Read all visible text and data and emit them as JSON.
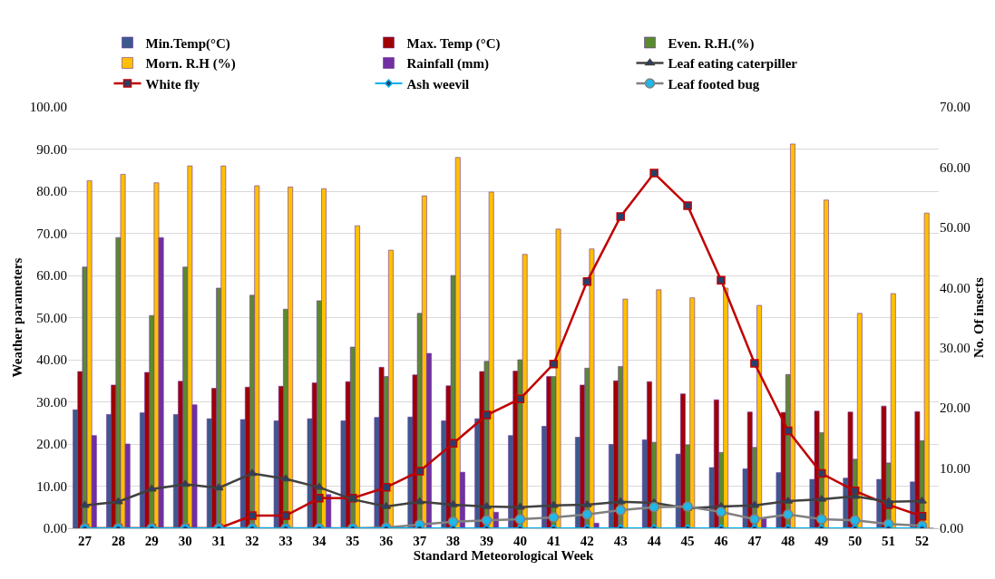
{
  "chart_data": {
    "type": "bar",
    "xlabel": "Standard Meteorological Week",
    "ylabel": "Weather parameters",
    "y2label": "No. Of insects",
    "categories": [
      "27",
      "28",
      "29",
      "30",
      "31",
      "32",
      "33",
      "34",
      "35",
      "36",
      "37",
      "38",
      "39",
      "40",
      "41",
      "42",
      "43",
      "44",
      "45",
      "46",
      "47",
      "48",
      "49",
      "50",
      "51",
      "52"
    ],
    "series": [
      {
        "name": "Min.Temp(°C)",
        "color": "#3b5a8c",
        "values": [
          28.1,
          27,
          27.4,
          27,
          26,
          25.8,
          25.5,
          26,
          25.5,
          26.3,
          26.4,
          25.5,
          26,
          22,
          24.2,
          21.6,
          19.9,
          21,
          17.6,
          14.4,
          14.1,
          13.2,
          11.6,
          11.9,
          11.6,
          11
        ]
      },
      {
        "name": "Max. Temp (°C)",
        "color": "#a00000",
        "values": [
          37.2,
          34,
          37,
          34.9,
          33.2,
          33.5,
          33.7,
          34.5,
          34.8,
          38.2,
          36.4,
          33.8,
          37.2,
          37.3,
          36,
          34,
          35,
          34.8,
          31.9,
          30.5,
          27.6,
          27.5,
          27.8,
          27.6,
          29,
          27.7
        ]
      },
      {
        "name": "Even. R.H.(%)",
        "color": "#5a8a2e",
        "values": [
          62,
          69,
          50.5,
          62,
          57,
          55.3,
          52,
          54,
          43,
          36,
          51,
          60,
          39.6,
          40,
          36,
          38,
          38.4,
          20.4,
          19.8,
          18,
          19.2,
          36.5,
          22.7,
          16.4,
          15.5,
          20.8
        ]
      },
      {
        "name": "Morn. R.H (%)",
        "color": "#ffc000",
        "values": [
          82.5,
          84,
          82,
          86,
          86,
          81.3,
          81,
          80.6,
          71.8,
          66,
          78.9,
          88,
          79.8,
          65,
          71,
          66.3,
          54.4,
          56.6,
          54.7,
          57,
          52.9,
          91.2,
          77.9,
          51,
          55.7,
          74.8
        ]
      },
      {
        "name": "Rainfall (mm)",
        "color": "#7030a0",
        "values": [
          22,
          20,
          69,
          29.3,
          0,
          0,
          0,
          8,
          0,
          0,
          41.5,
          13.3,
          3.8,
          0,
          0,
          1.2,
          0,
          0,
          0,
          0,
          2.3,
          0,
          0,
          0,
          0,
          0
        ]
      },
      {
        "name": "Leaf eating caterpiller",
        "type": "line",
        "axis": "y2",
        "marker": "triangle",
        "color": "#404040",
        "values": [
          3.8,
          4.4,
          6.5,
          7.3,
          6.7,
          9.1,
          8.2,
          6.8,
          4.8,
          3.6,
          4.4,
          3.9,
          3.6,
          3.5,
          3.8,
          3.9,
          4.4,
          4.2,
          3.3,
          3.6,
          3.8,
          4.5,
          4.8,
          5.3,
          4.4,
          4.5
        ]
      },
      {
        "name": "White fly",
        "type": "line",
        "axis": "y2",
        "marker": "square",
        "color": "#c00000",
        "values": [
          0,
          0,
          0,
          0,
          0,
          2.1,
          2.1,
          5,
          5,
          6.8,
          9.5,
          14.1,
          18.8,
          21.5,
          27.3,
          41,
          51.8,
          59,
          53.6,
          41.2,
          27.4,
          16.2,
          9.1,
          6.2,
          3.9,
          2
        ]
      },
      {
        "name": "Ash weevil",
        "type": "line",
        "axis": "y2",
        "marker": "diamond",
        "color": "#00b0f0",
        "values": [
          0,
          0,
          0,
          0,
          0,
          0,
          0,
          0,
          0,
          0,
          0,
          0,
          0,
          0,
          0,
          0,
          0,
          0,
          0,
          0,
          0,
          0,
          0,
          0,
          0,
          0
        ]
      },
      {
        "name": "Leaf footed bug",
        "type": "line",
        "axis": "y2",
        "marker": "circle",
        "color": "#808080",
        "values": [
          0,
          0,
          0,
          0,
          0,
          0,
          0,
          0,
          0,
          0.1,
          0.6,
          1.1,
          1.3,
          1.5,
          1.8,
          2.3,
          3,
          3.5,
          3.6,
          2.7,
          1.5,
          2.3,
          1.5,
          1.3,
          0.7,
          0.4
        ]
      }
    ],
    "ylim": [
      0,
      100
    ],
    "yticks": [
      {
        "value": 0,
        "label": "0.00"
      },
      {
        "value": 10,
        "label": "10.00"
      },
      {
        "value": 20,
        "label": "20.00"
      },
      {
        "value": 30,
        "label": "30.00"
      },
      {
        "value": 40,
        "label": "40.00"
      },
      {
        "value": 50,
        "label": "50.00"
      },
      {
        "value": 60,
        "label": "60.00"
      },
      {
        "value": 70,
        "label": "70.00"
      },
      {
        "value": 80,
        "label": "80.00"
      },
      {
        "value": 90,
        "label": "90.00"
      },
      {
        "value": 100,
        "label": "100.00"
      }
    ],
    "y2lim": [
      0,
      70
    ],
    "y2ticks": [
      {
        "value": 0,
        "label": "0.00"
      },
      {
        "value": 10,
        "label": "10.00"
      },
      {
        "value": 20,
        "label": "20.00"
      },
      {
        "value": 30,
        "label": "30.00"
      },
      {
        "value": 40,
        "label": "40.00"
      },
      {
        "value": 50,
        "label": "50.00"
      },
      {
        "value": 60,
        "label": "60.00"
      },
      {
        "value": 70,
        "label": "70.00"
      }
    ],
    "grid": "y",
    "legend": "top"
  }
}
